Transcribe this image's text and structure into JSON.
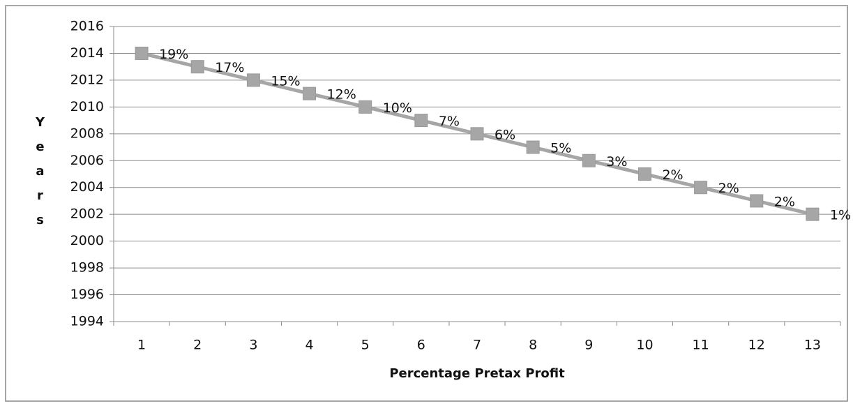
{
  "chart_data": {
    "type": "line",
    "x_label": "Percentage Pretax Profit",
    "y_label": "Years",
    "categories": [
      "1",
      "2",
      "3",
      "4",
      "5",
      "6",
      "7",
      "8",
      "9",
      "10",
      "11",
      "12",
      "13"
    ],
    "series": [
      {
        "color": "#444444",
        "marker": "diamond",
        "values": [
          2014,
          2013,
          2012,
          2011,
          2010,
          2009,
          2008,
          2007,
          2006,
          2005,
          2004,
          2003,
          2002
        ]
      },
      {
        "color": "#a6a6a6",
        "marker": "square",
        "values": [
          2014,
          2013,
          2012,
          2011,
          2010,
          2009,
          2008,
          2007,
          2006,
          2005,
          2004,
          2003,
          2002
        ]
      }
    ],
    "annotations": [
      "19%",
      "17%",
      "15%",
      "12%",
      "10%",
      "7%",
      "6%",
      "5%",
      "3%",
      "2%",
      "2%",
      "2%",
      "1%"
    ],
    "ylim": [
      1994,
      2016
    ],
    "yticks": [
      1994,
      1996,
      1998,
      2000,
      2002,
      2004,
      2006,
      2008,
      2010,
      2012,
      2014,
      2016
    ],
    "grid": true
  }
}
